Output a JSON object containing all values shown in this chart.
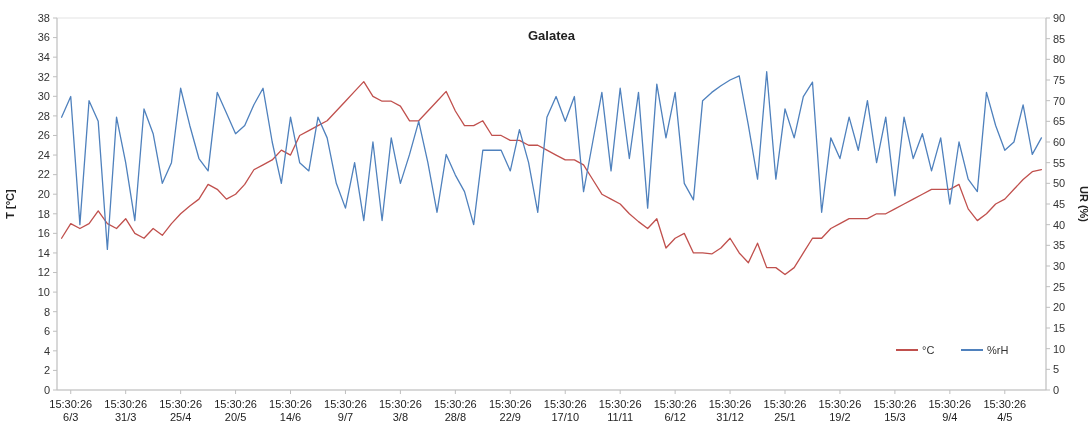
{
  "chart_data": {
    "type": "line",
    "title": "Galatea",
    "ylabel": "T [°C]",
    "y2label": "UR (%)",
    "categories": [
      null,
      "15:30:26\n6/3",
      null,
      null,
      null,
      null,
      null,
      "15:30:26\n31/3",
      null,
      null,
      null,
      null,
      null,
      "15:30:26\n25/4",
      null,
      null,
      null,
      null,
      null,
      "15:30:26\n20/5",
      null,
      null,
      null,
      null,
      null,
      "15:30:26\n14/6",
      null,
      null,
      null,
      null,
      null,
      "15:30:26\n9/7",
      null,
      null,
      null,
      null,
      null,
      "15:30:26\n3/8",
      null,
      null,
      null,
      null,
      null,
      "15:30:26\n28/8",
      null,
      null,
      null,
      null,
      null,
      "15:30:26\n22/9",
      null,
      null,
      null,
      null,
      null,
      "15:30:26\n17/10",
      null,
      null,
      null,
      null,
      null,
      "15:30:26\n11/11",
      null,
      null,
      null,
      null,
      null,
      "15:30:26\n6/12",
      null,
      null,
      null,
      null,
      null,
      "15:30:26\n31/12",
      null,
      null,
      null,
      null,
      null,
      "15:30:26\n25/1",
      null,
      null,
      null,
      null,
      null,
      "15:30:26\n19/2",
      null,
      null,
      null,
      null,
      null,
      "15:30:26\n15/3",
      null,
      null,
      null,
      null,
      null,
      "15:30:26\n9/4",
      null,
      null,
      null,
      null,
      null,
      "15:30:26\n4/5",
      null,
      null,
      null,
      null
    ],
    "series": [
      {
        "name": "°C",
        "color": "#c0504d",
        "values": [
          15.5,
          17,
          16.5,
          17,
          18.3,
          17,
          16.5,
          17.5,
          16,
          15.5,
          16.5,
          15.8,
          17,
          18,
          18.8,
          19.5,
          21,
          20.5,
          19.5,
          20,
          21,
          22.5,
          23,
          23.5,
          24.5,
          24,
          26,
          26.5,
          27,
          27.5,
          28.5,
          29.5,
          30.5,
          31.5,
          30,
          29.5,
          29.5,
          29,
          27.5,
          27.5,
          28.5,
          29.5,
          30.5,
          28.5,
          27,
          27,
          27.5,
          26,
          26,
          25.5,
          25.5,
          25,
          25,
          24.5,
          24,
          23.5,
          23.5,
          23,
          21.5,
          20,
          19.5,
          19,
          18,
          17.2,
          16.5,
          17.5,
          14.5,
          15.5,
          16,
          14,
          14,
          13.9,
          14.5,
          15.5,
          14,
          13,
          15,
          12.5,
          12.5,
          11.8,
          12.5,
          14,
          15.5,
          15.5,
          16.5,
          17,
          17.5,
          17.5,
          17.5,
          18,
          18,
          18.5,
          19,
          19.5,
          20,
          20.5,
          20.5,
          20.5,
          21,
          18.5,
          17.3,
          18,
          19,
          19.5,
          20.5,
          21.5,
          22.3,
          22.5
        ]
      },
      {
        "name": "%rH",
        "color": "#4f81bd",
        "axis": "y2",
        "values": [
          66,
          71,
          40,
          70,
          65,
          34,
          66,
          55,
          41,
          68,
          62,
          50,
          55,
          73,
          64,
          56,
          53,
          72,
          67,
          62,
          64,
          69,
          73,
          60,
          50,
          66,
          55,
          53,
          66,
          61,
          50,
          44,
          55,
          41,
          60,
          41,
          61,
          50,
          57,
          65,
          55,
          43,
          57,
          52,
          48,
          40,
          58,
          58,
          58,
          53,
          63,
          55,
          43,
          66,
          71,
          65,
          71,
          48,
          60,
          72,
          53,
          73,
          56,
          72,
          44,
          74,
          61,
          72,
          50,
          46,
          70,
          72,
          73.6,
          75,
          76,
          64,
          51,
          77,
          51,
          68,
          61,
          71,
          74.5,
          43,
          61,
          56,
          66,
          58,
          70,
          55,
          66,
          47,
          66,
          56,
          62,
          53,
          61,
          45,
          60,
          51,
          48,
          72,
          64,
          58,
          60,
          69,
          57,
          61
        ]
      }
    ],
    "ylim": [
      0,
      38
    ],
    "yticks": [
      0,
      2,
      4,
      6,
      8,
      10,
      12,
      14,
      16,
      18,
      20,
      22,
      24,
      26,
      28,
      30,
      32,
      34,
      36,
      38
    ],
    "y2lim": [
      0,
      90
    ],
    "y2ticks": [
      0,
      5,
      10,
      15,
      20,
      25,
      30,
      35,
      40,
      45,
      50,
      55,
      60,
      65,
      70,
      75,
      80,
      85,
      90
    ],
    "legend": "bottom right",
    "grid": false,
    "marker": "none",
    "line_style": "solid"
  }
}
